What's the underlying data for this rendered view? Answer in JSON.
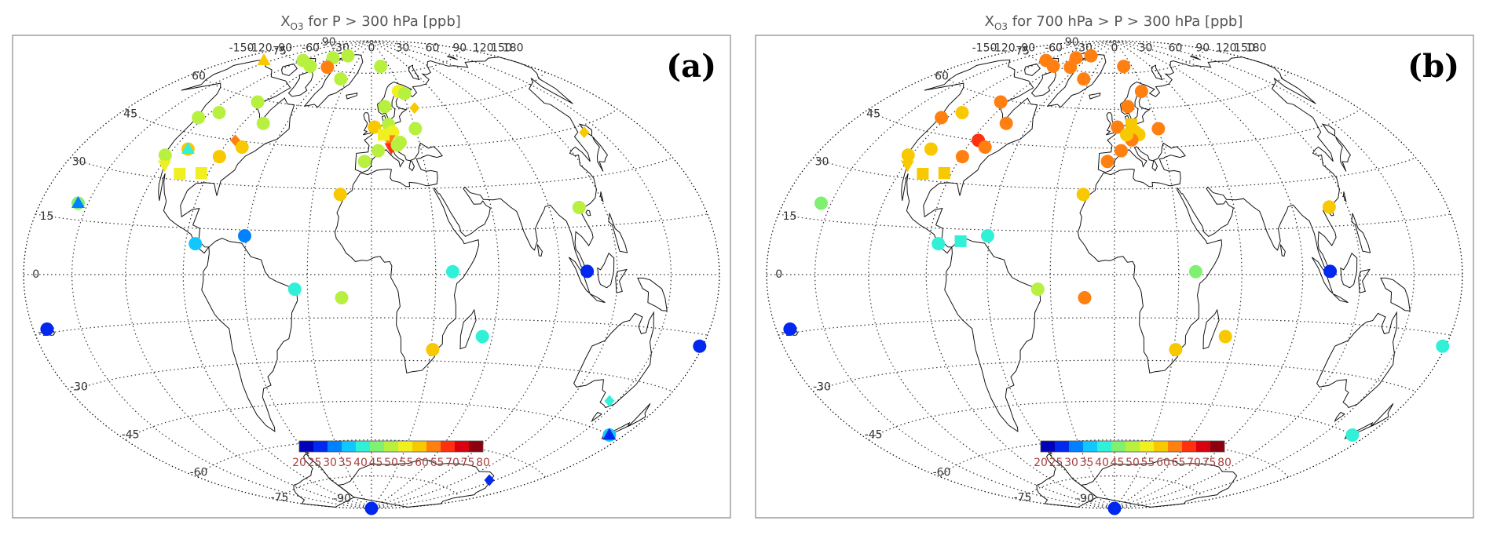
{
  "panels": [
    {
      "id": "a",
      "title": "X",
      "title_sub": "O3",
      "title_rest": " for P > 300 hPa [ppb]",
      "panel_label": "(a)",
      "sites": [
        {
          "lon": -171,
          "lat": -14,
          "value": 25,
          "marker": "circle"
        },
        {
          "lon": -156,
          "lat": 19.5,
          "value": 45,
          "marker": "circle"
        },
        {
          "lon": -156,
          "lat": 19.5,
          "value": 33,
          "marker": "triangle"
        },
        {
          "lon": -157,
          "lat": 71,
          "value": 60,
          "marker": "triangle"
        },
        {
          "lon": -124,
          "lat": 50,
          "value": 52,
          "marker": "circle"
        },
        {
          "lon": -122,
          "lat": 37,
          "value": 52,
          "marker": "circle"
        },
        {
          "lon": -118,
          "lat": 34,
          "value": 55,
          "marker": "triangle-down"
        },
        {
          "lon": -114,
          "lat": 53,
          "value": 52,
          "marker": "circle"
        },
        {
          "lon": -111,
          "lat": 40,
          "value": 60,
          "marker": "circle"
        },
        {
          "lon": -111,
          "lat": 40,
          "value": 40,
          "marker": "triangle"
        },
        {
          "lon": -106,
          "lat": 32,
          "value": 55,
          "marker": "square"
        },
        {
          "lon": -94,
          "lat": 33,
          "value": 55,
          "marker": "square"
        },
        {
          "lon": -95,
          "lat": 59,
          "value": 52,
          "marker": "circle"
        },
        {
          "lon": -89,
          "lat": 39,
          "value": 60,
          "marker": "circle"
        },
        {
          "lon": -86,
          "lat": 45,
          "value": 65,
          "marker": "diamond"
        },
        {
          "lon": -79,
          "lat": 43,
          "value": 60,
          "marker": "circle"
        },
        {
          "lon": -76,
          "lat": 52,
          "value": 52,
          "marker": "circle"
        },
        {
          "lon": -119,
          "lat": 76,
          "value": 52,
          "marker": "circle"
        },
        {
          "lon": -95,
          "lat": 75,
          "value": 52,
          "marker": "circle"
        },
        {
          "lon": -85,
          "lat": 80,
          "value": 52,
          "marker": "circle"
        },
        {
          "lon": -70,
          "lat": 76,
          "value": 65,
          "marker": "circle"
        },
        {
          "lon": -62,
          "lat": 82,
          "value": 52,
          "marker": "circle"
        },
        {
          "lon": -38,
          "lat": 72,
          "value": 52,
          "marker": "circle"
        },
        {
          "lon": -85,
          "lat": 10,
          "value": 35,
          "marker": "circle"
        },
        {
          "lon": -61,
          "lat": 13,
          "value": 30,
          "marker": "circle"
        },
        {
          "lon": -36,
          "lat": -5,
          "value": 40,
          "marker": "circle"
        },
        {
          "lon": -14,
          "lat": -8,
          "value": 52,
          "marker": "circle"
        },
        {
          "lon": -16,
          "lat": 28,
          "value": 60,
          "marker": "circle"
        },
        {
          "lon": 16,
          "lat": 78,
          "value": 52,
          "marker": "circle"
        },
        {
          "lon": 27,
          "lat": 67,
          "value": 55,
          "marker": "circle"
        },
        {
          "lon": 32,
          "lat": 66,
          "value": 52,
          "marker": "circle"
        },
        {
          "lon": 35,
          "lat": 60,
          "value": 60,
          "marker": "diamond"
        },
        {
          "lon": 30,
          "lat": 52,
          "value": 52,
          "marker": "circle"
        },
        {
          "lon": 11,
          "lat": 61,
          "value": 52,
          "marker": "circle"
        },
        {
          "lon": 2,
          "lat": 53,
          "value": 60,
          "marker": "circle"
        },
        {
          "lon": 12,
          "lat": 54,
          "value": 52,
          "marker": "circle"
        },
        {
          "lon": 14,
          "lat": 51,
          "value": 55,
          "marker": "circle"
        },
        {
          "lon": 11,
          "lat": 48,
          "value": 65,
          "marker": "triangle-down"
        },
        {
          "lon": 12,
          "lat": 45,
          "value": 72,
          "marker": "triangle-down"
        },
        {
          "lon": 16,
          "lat": 46,
          "value": 52,
          "marker": "circle"
        },
        {
          "lon": 4,
          "lat": 44,
          "value": 52,
          "marker": "circle"
        },
        {
          "lon": 8,
          "lat": 50,
          "value": 55,
          "marker": "square"
        },
        {
          "lon": 18,
          "lat": 47,
          "value": 50,
          "marker": "circle"
        },
        {
          "lon": -4,
          "lat": 40,
          "value": 52,
          "marker": "circle"
        },
        {
          "lon": 38,
          "lat": 1,
          "value": 40,
          "marker": "circle"
        },
        {
          "lon": 55,
          "lat": -21,
          "value": 40,
          "marker": "circle"
        },
        {
          "lon": 31,
          "lat": -26,
          "value": 60,
          "marker": "circle"
        },
        {
          "lon": 104,
          "lat": 1,
          "value": 28,
          "marker": "circle"
        },
        {
          "lon": 106,
          "lat": 21,
          "value": 52,
          "marker": "circle"
        },
        {
          "lon": 139,
          "lat": 43,
          "value": 60,
          "marker": "diamond"
        },
        {
          "lon": 145,
          "lat": -37,
          "value": 40,
          "marker": "diamond"
        },
        {
          "lon": 170,
          "lat": -45,
          "value": 38,
          "marker": "circle"
        },
        {
          "lon": 170,
          "lat": -45,
          "value": 28,
          "marker": "triangle"
        },
        {
          "lon": 178,
          "lat": -18,
          "value": 28,
          "marker": "circle"
        },
        {
          "lon": -81,
          "lat": -90,
          "value": 28,
          "marker": "circle"
        },
        {
          "lon": 145,
          "lat": -68,
          "value": 28,
          "marker": "diamond"
        }
      ]
    },
    {
      "id": "b",
      "title": "X",
      "title_sub": "O3",
      "title_rest": " for 700 hPa > P > 300 hPa [ppb]",
      "panel_label": "(b)",
      "sites": [
        {
          "lon": -171,
          "lat": -14,
          "value": 25,
          "marker": "circle"
        },
        {
          "lon": -156,
          "lat": 19.5,
          "value": 45,
          "marker": "circle"
        },
        {
          "lon": -124,
          "lat": 50,
          "value": 65,
          "marker": "circle"
        },
        {
          "lon": -122,
          "lat": 37,
          "value": 60,
          "marker": "circle"
        },
        {
          "lon": -118,
          "lat": 34,
          "value": 60,
          "marker": "triangle-down"
        },
        {
          "lon": -114,
          "lat": 53,
          "value": 60,
          "marker": "circle"
        },
        {
          "lon": -111,
          "lat": 40,
          "value": 60,
          "marker": "circle"
        },
        {
          "lon": -106,
          "lat": 32,
          "value": 60,
          "marker": "square"
        },
        {
          "lon": -94,
          "lat": 33,
          "value": 60,
          "marker": "square"
        },
        {
          "lon": -95,
          "lat": 59,
          "value": 65,
          "marker": "circle"
        },
        {
          "lon": -89,
          "lat": 39,
          "value": 65,
          "marker": "circle"
        },
        {
          "lon": -86,
          "lat": 45,
          "value": 70,
          "marker": "circle"
        },
        {
          "lon": -79,
          "lat": 43,
          "value": 65,
          "marker": "circle"
        },
        {
          "lon": -76,
          "lat": 52,
          "value": 65,
          "marker": "circle"
        },
        {
          "lon": -119,
          "lat": 76,
          "value": 65,
          "marker": "circle"
        },
        {
          "lon": -95,
          "lat": 75,
          "value": 65,
          "marker": "circle"
        },
        {
          "lon": -85,
          "lat": 80,
          "value": 65,
          "marker": "circle"
        },
        {
          "lon": -70,
          "lat": 76,
          "value": 65,
          "marker": "circle"
        },
        {
          "lon": -62,
          "lat": 82,
          "value": 65,
          "marker": "circle"
        },
        {
          "lon": -38,
          "lat": 72,
          "value": 65,
          "marker": "circle"
        },
        {
          "lon": -85,
          "lat": 10,
          "value": 40,
          "marker": "circle"
        },
        {
          "lon": -74,
          "lat": 11,
          "value": 40,
          "marker": "square"
        },
        {
          "lon": -61,
          "lat": 13,
          "value": 40,
          "marker": "circle"
        },
        {
          "lon": -36,
          "lat": -5,
          "value": 52,
          "marker": "circle"
        },
        {
          "lon": -14,
          "lat": -8,
          "value": 65,
          "marker": "circle"
        },
        {
          "lon": -16,
          "lat": 28,
          "value": 60,
          "marker": "circle"
        },
        {
          "lon": 16,
          "lat": 78,
          "value": 65,
          "marker": "circle"
        },
        {
          "lon": 27,
          "lat": 67,
          "value": 65,
          "marker": "circle"
        },
        {
          "lon": 30,
          "lat": 52,
          "value": 65,
          "marker": "circle"
        },
        {
          "lon": 11,
          "lat": 61,
          "value": 65,
          "marker": "circle"
        },
        {
          "lon": 2,
          "lat": 53,
          "value": 65,
          "marker": "circle"
        },
        {
          "lon": 12,
          "lat": 54,
          "value": 60,
          "marker": "square"
        },
        {
          "lon": 14,
          "lat": 51,
          "value": 60,
          "marker": "circle"
        },
        {
          "lon": 16,
          "lat": 50,
          "value": 60,
          "marker": "circle"
        },
        {
          "lon": 11,
          "lat": 48,
          "value": 65,
          "marker": "circle"
        },
        {
          "lon": 8,
          "lat": 50,
          "value": 60,
          "marker": "circle"
        },
        {
          "lon": 4,
          "lat": 44,
          "value": 65,
          "marker": "circle"
        },
        {
          "lon": -4,
          "lat": 40,
          "value": 65,
          "marker": "circle"
        },
        {
          "lon": 38,
          "lat": 1,
          "value": 48,
          "marker": "circle"
        },
        {
          "lon": 55,
          "lat": -21,
          "value": 60,
          "marker": "circle"
        },
        {
          "lon": 31,
          "lat": -26,
          "value": 60,
          "marker": "circle"
        },
        {
          "lon": 104,
          "lat": 1,
          "value": 28,
          "marker": "circle"
        },
        {
          "lon": 110,
          "lat": 21,
          "value": 60,
          "marker": "circle"
        },
        {
          "lon": 170,
          "lat": -45,
          "value": 40,
          "marker": "circle"
        },
        {
          "lon": 178,
          "lat": -18,
          "value": 40,
          "marker": "circle"
        },
        {
          "lon": -81,
          "lat": -90,
          "value": 28,
          "marker": "circle"
        }
      ]
    }
  ],
  "colorbar": {
    "ticks": [
      "20",
      "25",
      "30",
      "35",
      "40",
      "45",
      "50",
      "55",
      "60",
      "65",
      "70",
      "75",
      "80"
    ],
    "colors": [
      "#0000b8",
      "#0028ee",
      "#0082ff",
      "#10c8ff",
      "#30f0d8",
      "#80f070",
      "#b8f040",
      "#f0f020",
      "#f8c800",
      "#ff8010",
      "#ff3010",
      "#d80010",
      "#8c0010"
    ],
    "label_color": "#a84040"
  },
  "graticule": {
    "lon_labels": [
      "-150",
      "-120",
      "-90",
      "-60",
      "-30",
      "0",
      "30",
      "60",
      "90",
      "120",
      "150",
      "180"
    ],
    "lon_label_values": [
      -150,
      -120,
      -90,
      -60,
      -30,
      0,
      30,
      60,
      90,
      120,
      150,
      180
    ],
    "lat_labels": [
      "90",
      "75",
      "60",
      "45",
      "30",
      "15",
      "0",
      "-15",
      "-30",
      "-45",
      "-60",
      "-75",
      "-90"
    ],
    "lat_label_values": [
      90,
      75,
      60,
      45,
      30,
      15,
      0,
      -15,
      -30,
      -45,
      -60,
      -75,
      -90
    ],
    "projection": "hammer-aitoff"
  }
}
